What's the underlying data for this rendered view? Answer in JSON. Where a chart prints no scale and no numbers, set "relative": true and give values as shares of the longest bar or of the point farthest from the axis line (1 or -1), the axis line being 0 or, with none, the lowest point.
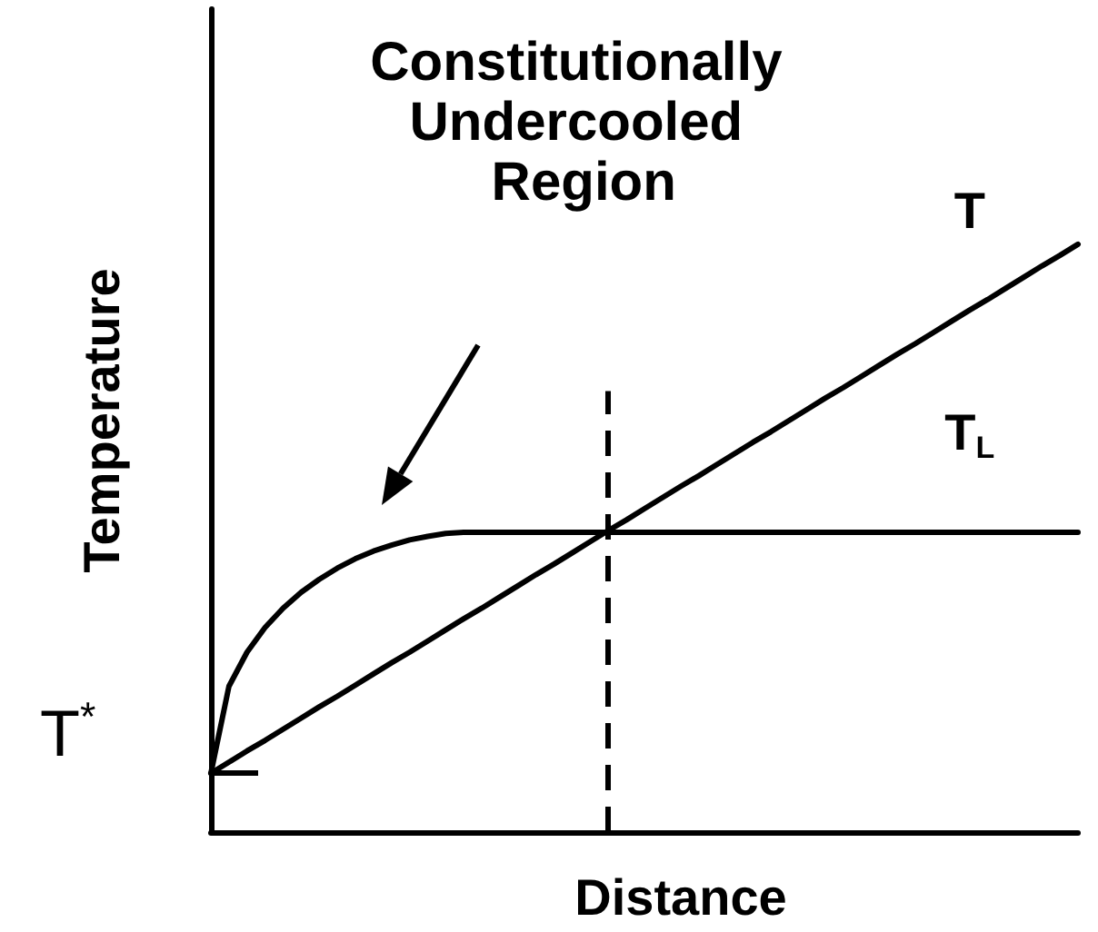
{
  "chart_data": {
    "type": "line",
    "xlabel": "Distance",
    "ylabel": "Temperature",
    "relative": true,
    "categories": [
      null,
      null,
      null,
      null,
      null,
      null,
      null,
      null,
      null,
      null,
      null,
      null,
      null,
      null,
      null,
      null,
      null,
      null,
      null,
      null,
      null,
      null,
      null,
      null,
      null,
      null,
      null,
      null,
      null,
      null,
      null,
      null,
      null,
      null,
      null,
      null,
      null,
      null,
      null,
      null,
      null,
      null,
      null,
      null,
      null,
      null,
      null,
      null,
      null
    ],
    "series": [
      {
        "name": "T",
        "color": "#000000",
        "values": [
          0.1,
          0.119,
          0.138,
          0.156,
          0.175,
          0.194,
          0.213,
          0.231,
          0.25,
          0.269,
          0.288,
          0.306,
          0.325,
          0.344,
          0.363,
          0.381,
          0.4,
          0.419,
          0.438,
          0.456,
          0.475,
          0.494,
          0.513,
          0.531,
          0.55,
          0.569,
          0.588,
          0.606,
          0.625,
          0.644,
          0.663,
          0.681,
          0.7,
          0.719,
          0.738,
          0.756,
          0.775,
          0.794,
          0.813,
          0.831,
          0.85,
          0.869,
          0.888,
          0.906,
          0.925,
          0.944,
          0.963,
          0.981,
          1.0
        ]
      },
      {
        "name": "T$_{L}$",
        "color": "#000000",
        "values": [
          0.1,
          0.248,
          0.306,
          0.348,
          0.381,
          0.408,
          0.43,
          0.449,
          0.465,
          0.478,
          0.488,
          0.497,
          0.503,
          0.508,
          0.51,
          0.51,
          0.51,
          0.51,
          0.51,
          0.51,
          0.51,
          0.51,
          0.51,
          0.51,
          0.51,
          0.51,
          0.51,
          0.51,
          0.51,
          0.51,
          0.51,
          0.51,
          0.51,
          0.51,
          0.51,
          0.51,
          0.51,
          0.51,
          0.51,
          0.51,
          0.51,
          0.51,
          0.51,
          0.51,
          0.51,
          0.51,
          0.51,
          0.51,
          0.51
        ]
      }
    ],
    "annotations": [
      "Constitutionally Undercooled Region",
      "T$^{*}$"
    ]
  }
}
